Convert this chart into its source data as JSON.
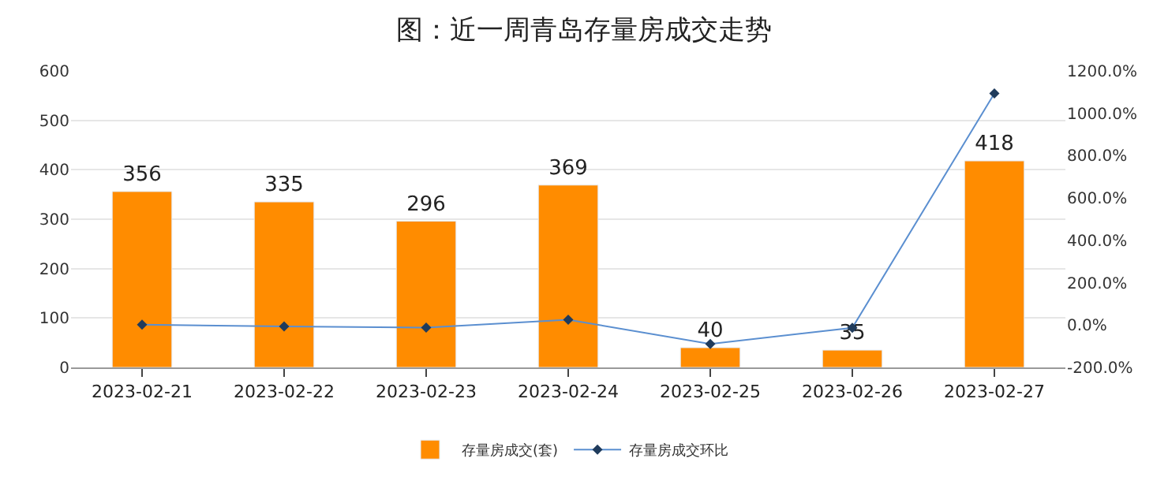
{
  "chart_data": {
    "type": "bar",
    "title": "图：近一周青岛存量房成交走势",
    "categories": [
      "2023-02-21",
      "2023-02-22",
      "2023-02-23",
      "2023-02-24",
      "2023-02-25",
      "2023-02-26",
      "2023-02-27"
    ],
    "series": [
      {
        "name": "存量房成交(套)",
        "color": "#ff8c00",
        "values": [
          356,
          335,
          296,
          369,
          40,
          35,
          418
        ],
        "data_labels": true
      },
      {
        "name": "存量房成交环比",
        "type": "line",
        "axis": "y2",
        "color": "#5b8fd0",
        "marker": "diamond",
        "values": [
          2,
          -6,
          -12,
          25,
          -89,
          -13,
          1094
        ]
      }
    ],
    "ylim": [
      0,
      600
    ],
    "yticks": [
      0,
      100,
      200,
      300,
      400,
      500,
      600
    ],
    "y2lim": [
      -200,
      1200
    ],
    "y2ticks": [
      {
        "value": -200,
        "label": "-200.0%"
      },
      {
        "value": 0,
        "label": "0.0%"
      },
      {
        "value": 200,
        "label": "200.0%"
      },
      {
        "value": 400,
        "label": "400.0%"
      },
      {
        "value": 600,
        "label": "600.0%"
      },
      {
        "value": 800,
        "label": "800.0%"
      },
      {
        "value": 1000,
        "label": "1000.0%"
      },
      {
        "value": 1200,
        "label": "1200.0%"
      }
    ],
    "grid": "y",
    "legend": "bottom"
  }
}
